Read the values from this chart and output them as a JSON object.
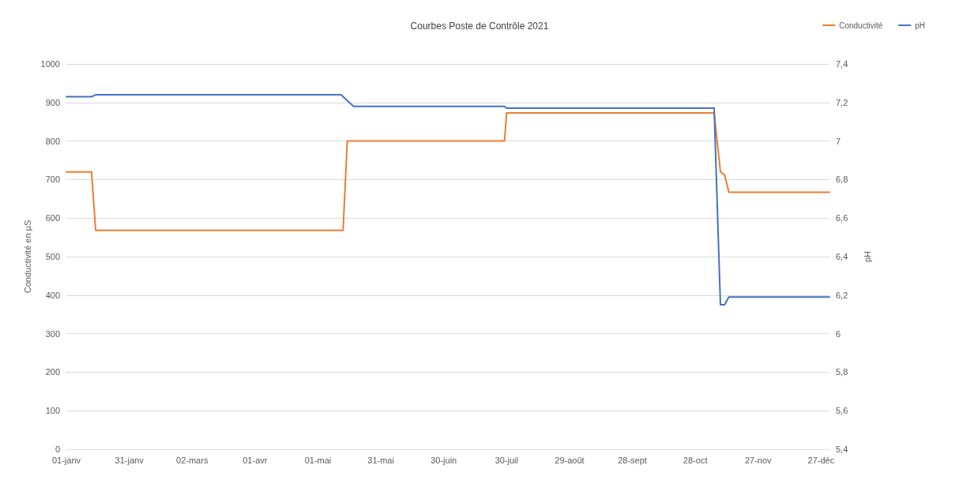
{
  "chart_data": {
    "type": "line",
    "title": "Courbes Poste de Contrôle 2021",
    "ylabel": "Conductivité en µS",
    "y2label": "pH",
    "series": [
      {
        "name": "Conductivité",
        "color": "#ed7d31",
        "x": [
          "2021-01-01",
          "2021-01-13",
          "2021-01-15",
          "2021-05-13",
          "2021-05-15",
          "2021-07-29",
          "2021-07-30",
          "2021-11-06",
          "2021-11-09",
          "2021-11-11",
          "2021-11-13",
          "2021-12-31"
        ],
        "values": [
          720,
          720,
          568,
          568,
          800,
          800,
          873,
          873,
          720,
          712,
          667,
          667
        ]
      },
      {
        "name": "pH",
        "color": "#4472c4",
        "axis": "y2",
        "x": [
          "2021-01-01",
          "2021-01-13",
          "2021-01-15",
          "2021-05-12",
          "2021-05-18",
          "2021-07-29",
          "2021-07-30",
          "2021-11-06",
          "2021-11-09",
          "2021-11-11",
          "2021-11-13",
          "2021-12-31"
        ],
        "values": [
          7.23,
          7.23,
          7.24,
          7.24,
          7.18,
          7.18,
          7.17,
          7.17,
          6.15,
          6.15,
          6.19,
          6.19
        ]
      }
    ],
    "xlim": [
      "2021-01-01",
      "2021-12-31"
    ],
    "xticks": [
      {
        "value": "2021-01-01",
        "label": "01-janv"
      },
      {
        "value": "2021-01-31",
        "label": "31-janv"
      },
      {
        "value": "2021-03-02",
        "label": "02-mars"
      },
      {
        "value": "2021-04-01",
        "label": "01-avr"
      },
      {
        "value": "2021-05-01",
        "label": "01-mai"
      },
      {
        "value": "2021-05-31",
        "label": "31-mai"
      },
      {
        "value": "2021-06-30",
        "label": "30-juin"
      },
      {
        "value": "2021-07-30",
        "label": "30-juil"
      },
      {
        "value": "2021-08-29",
        "label": "29-août"
      },
      {
        "value": "2021-09-28",
        "label": "28-sept"
      },
      {
        "value": "2021-10-28",
        "label": "28-oct"
      },
      {
        "value": "2021-11-27",
        "label": "27-nov"
      },
      {
        "value": "2021-12-27",
        "label": "27-déc"
      }
    ],
    "ylim": [
      0,
      1000
    ],
    "yticks": [
      0,
      100,
      200,
      300,
      400,
      500,
      600,
      700,
      800,
      900,
      1000
    ],
    "y2lim": [
      5.4,
      7.4
    ],
    "y2ticks": [
      {
        "value": 5.4,
        "label": "5,4"
      },
      {
        "value": 5.6,
        "label": "5,6"
      },
      {
        "value": 5.8,
        "label": "5,8"
      },
      6,
      {
        "value": 6.2,
        "label": "6,2"
      },
      {
        "value": 6.4,
        "label": "6,4"
      },
      {
        "value": 6.6,
        "label": "6,6"
      },
      {
        "value": 6.8,
        "label": "6,8"
      },
      7,
      {
        "value": 7.2,
        "label": "7,2"
      },
      {
        "value": 7.4,
        "label": "7,4"
      }
    ],
    "grid": "y",
    "legend": "top right",
    "marker": "none",
    "line_style": "solid"
  }
}
